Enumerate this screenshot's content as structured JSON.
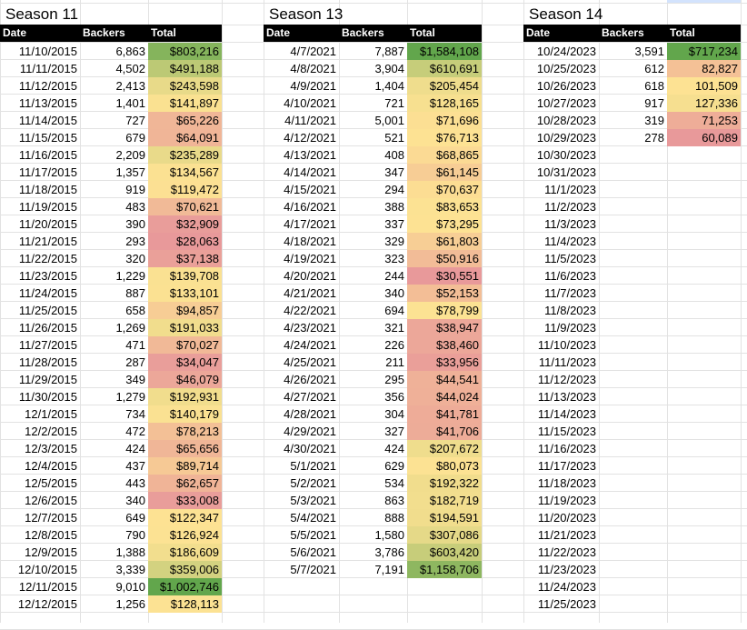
{
  "seasons": [
    {
      "title": "Season 11",
      "headers": [
        "Date",
        "Backers",
        "Total"
      ],
      "rows": [
        [
          "11/10/2015",
          "6,863",
          "$803,216"
        ],
        [
          "11/11/2015",
          "4,502",
          "$491,188"
        ],
        [
          "11/12/2015",
          "2,413",
          "$243,598"
        ],
        [
          "11/13/2015",
          "1,401",
          "$141,897"
        ],
        [
          "11/14/2015",
          "727",
          "$65,226"
        ],
        [
          "11/15/2015",
          "679",
          "$64,091"
        ],
        [
          "11/16/2015",
          "2,209",
          "$235,289"
        ],
        [
          "11/17/2015",
          "1,357",
          "$134,567"
        ],
        [
          "11/18/2015",
          "919",
          "$119,472"
        ],
        [
          "11/19/2015",
          "483",
          "$70,621"
        ],
        [
          "11/20/2015",
          "390",
          "$32,909"
        ],
        [
          "11/21/2015",
          "293",
          "$28,063"
        ],
        [
          "11/22/2015",
          "320",
          "$37,138"
        ],
        [
          "11/23/2015",
          "1,229",
          "$139,708"
        ],
        [
          "11/24/2015",
          "887",
          "$133,101"
        ],
        [
          "11/25/2015",
          "658",
          "$94,857"
        ],
        [
          "11/26/2015",
          "1,269",
          "$191,033"
        ],
        [
          "11/27/2015",
          "471",
          "$70,027"
        ],
        [
          "11/28/2015",
          "287",
          "$34,047"
        ],
        [
          "11/29/2015",
          "349",
          "$46,079"
        ],
        [
          "11/30/2015",
          "1,279",
          "$192,931"
        ],
        [
          "12/1/2015",
          "734",
          "$140,179"
        ],
        [
          "12/2/2015",
          "472",
          "$78,213"
        ],
        [
          "12/3/2015",
          "424",
          "$65,656"
        ],
        [
          "12/4/2015",
          "437",
          "$89,714"
        ],
        [
          "12/5/2015",
          "443",
          "$62,657"
        ],
        [
          "12/6/2015",
          "340",
          "$33,008"
        ],
        [
          "12/7/2015",
          "649",
          "$122,347"
        ],
        [
          "12/8/2015",
          "790",
          "$126,924"
        ],
        [
          "12/9/2015",
          "1,388",
          "$186,609"
        ],
        [
          "12/10/2015",
          "3,339",
          "$359,006"
        ],
        [
          "12/11/2015",
          "9,010",
          "$1,002,746"
        ],
        [
          "12/12/2015",
          "1,256",
          "$128,113"
        ]
      ]
    },
    {
      "title": "Season 13",
      "headers": [
        "Date",
        "Backers",
        "Total"
      ],
      "rows": [
        [
          "4/7/2021",
          "7,887",
          "$1,584,108"
        ],
        [
          "4/8/2021",
          "3,904",
          "$610,691"
        ],
        [
          "4/9/2021",
          "1,404",
          "$205,454"
        ],
        [
          "4/10/2021",
          "721",
          "$128,165"
        ],
        [
          "4/11/2021",
          "5,001",
          "$71,696"
        ],
        [
          "4/12/2021",
          "521",
          "$76,713"
        ],
        [
          "4/13/2021",
          "408",
          "$68,865"
        ],
        [
          "4/14/2021",
          "347",
          "$61,145"
        ],
        [
          "4/15/2021",
          "294",
          "$70,637"
        ],
        [
          "4/16/2021",
          "388",
          "$83,653"
        ],
        [
          "4/17/2021",
          "337",
          "$73,295"
        ],
        [
          "4/18/2021",
          "329",
          "$61,803"
        ],
        [
          "4/19/2021",
          "323",
          "$50,916"
        ],
        [
          "4/20/2021",
          "244",
          "$30,551"
        ],
        [
          "4/21/2021",
          "340",
          "$52,153"
        ],
        [
          "4/22/2021",
          "694",
          "$78,799"
        ],
        [
          "4/23/2021",
          "321",
          "$38,947"
        ],
        [
          "4/24/2021",
          "226",
          "$38,460"
        ],
        [
          "4/25/2021",
          "211",
          "$33,956"
        ],
        [
          "4/26/2021",
          "295",
          "$44,541"
        ],
        [
          "4/27/2021",
          "356",
          "$44,024"
        ],
        [
          "4/28/2021",
          "304",
          "$41,781"
        ],
        [
          "4/29/2021",
          "327",
          "$41,706"
        ],
        [
          "4/30/2021",
          "424",
          "$207,672"
        ],
        [
          "5/1/2021",
          "629",
          "$80,073"
        ],
        [
          "5/2/2021",
          "534",
          "$192,322"
        ],
        [
          "5/3/2021",
          "863",
          "$182,719"
        ],
        [
          "5/4/2021",
          "888",
          "$194,591"
        ],
        [
          "5/5/2021",
          "1,580",
          "$307,086"
        ],
        [
          "5/6/2021",
          "3,786",
          "$603,420"
        ],
        [
          "5/7/2021",
          "7,191",
          "$1,158,706"
        ]
      ]
    },
    {
      "title": "Season 14",
      "headers": [
        "Date",
        "Backers",
        "Total"
      ],
      "rows": [
        [
          "10/24/2023",
          "3,591",
          "$717,234"
        ],
        [
          "10/25/2023",
          "612",
          "82,827"
        ],
        [
          "10/26/2023",
          "618",
          "101,509"
        ],
        [
          "10/27/2023",
          "917",
          "127,336"
        ],
        [
          "10/28/2023",
          "319",
          "71,253"
        ],
        [
          "10/29/2023",
          "278",
          "60,089"
        ],
        [
          "10/30/2023",
          "",
          ""
        ],
        [
          "10/31/2023",
          "",
          ""
        ],
        [
          "11/1/2023",
          "",
          ""
        ],
        [
          "11/2/2023",
          "",
          ""
        ],
        [
          "11/3/2023",
          "",
          ""
        ],
        [
          "11/4/2023",
          "",
          ""
        ],
        [
          "11/5/2023",
          "",
          ""
        ],
        [
          "11/6/2023",
          "",
          ""
        ],
        [
          "11/7/2023",
          "",
          ""
        ],
        [
          "11/8/2023",
          "",
          ""
        ],
        [
          "11/9/2023",
          "",
          ""
        ],
        [
          "11/10/2023",
          "",
          ""
        ],
        [
          "11/11/2023",
          "",
          ""
        ],
        [
          "11/12/2023",
          "",
          ""
        ],
        [
          "11/13/2023",
          "",
          ""
        ],
        [
          "11/14/2023",
          "",
          ""
        ],
        [
          "11/15/2023",
          "",
          ""
        ],
        [
          "11/16/2023",
          "",
          ""
        ],
        [
          "11/17/2023",
          "",
          ""
        ],
        [
          "11/18/2023",
          "",
          ""
        ],
        [
          "11/19/2023",
          "",
          ""
        ],
        [
          "11/20/2023",
          "",
          ""
        ],
        [
          "11/21/2023",
          "",
          ""
        ],
        [
          "11/22/2023",
          "",
          ""
        ],
        [
          "11/23/2023",
          "",
          ""
        ],
        [
          "11/24/2023",
          "",
          ""
        ],
        [
          "11/25/2023",
          "",
          ""
        ]
      ]
    }
  ],
  "colors": {
    "low": "#e8999a",
    "mid": "#fde293",
    "high": "#62a64c",
    "header_bg": "#000000",
    "header_text": "#ffffff",
    "gridline": "#e2e2e2"
  }
}
